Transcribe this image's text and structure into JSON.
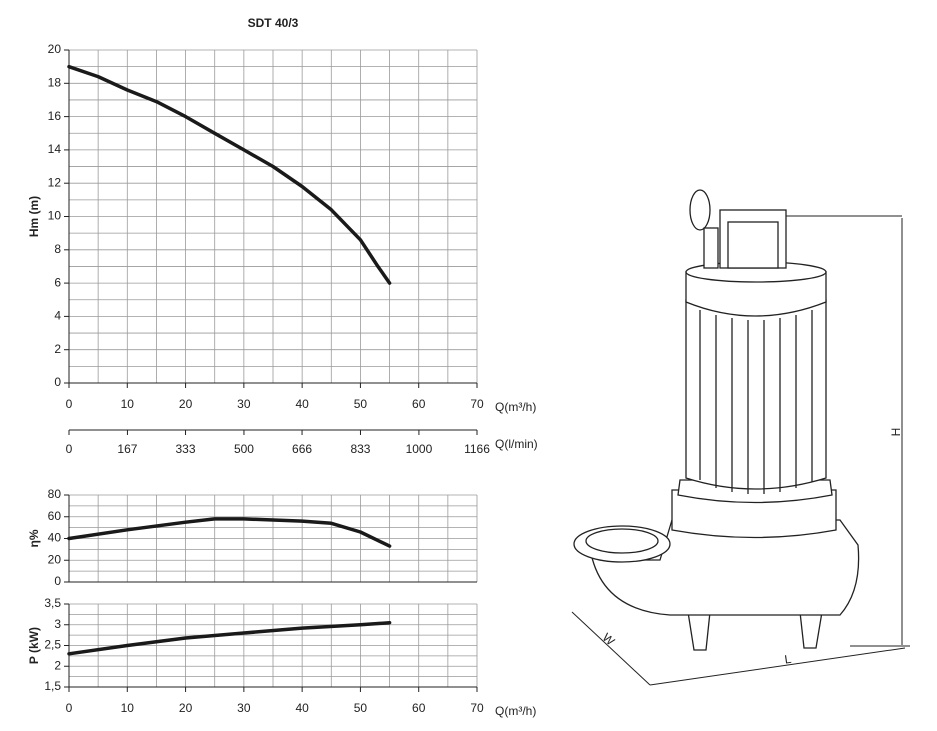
{
  "chart_data": [
    {
      "type": "line",
      "title": "SDT 40/3",
      "ylabel": "Hm   (m)",
      "xlabel": "Q(m³/h)",
      "xlim": [
        0,
        70
      ],
      "xticks": [
        0,
        10,
        20,
        30,
        40,
        50,
        60,
        70
      ],
      "xgrid": [
        5,
        15,
        25,
        35,
        45,
        55,
        65
      ],
      "ylim": [
        0,
        20
      ],
      "yticks": [
        0,
        2,
        4,
        6,
        8,
        10,
        12,
        14,
        16,
        18,
        20
      ],
      "ygrid": [
        1,
        3,
        5,
        7,
        9,
        11,
        13,
        15,
        17,
        19
      ],
      "x2lim": [
        0,
        1166
      ],
      "x2ticks": [
        0,
        167,
        333,
        500,
        666,
        833,
        1000,
        1166
      ],
      "x2label": "Q(l/min)",
      "x": [
        0,
        5,
        10,
        15,
        20,
        25,
        30,
        35,
        40,
        45,
        50,
        53,
        55
      ],
      "values": [
        19,
        18.4,
        17.6,
        16.9,
        16,
        15,
        14,
        13,
        11.8,
        10.4,
        8.6,
        7,
        6
      ],
      "color": "#1a1a1a",
      "grid": true
    },
    {
      "type": "line",
      "ylabel": "η%",
      "xlim": [
        0,
        70
      ],
      "xgrid": [
        0,
        5,
        10,
        15,
        20,
        25,
        30,
        35,
        40,
        45,
        50,
        55,
        60,
        65,
        70
      ],
      "ylim": [
        0,
        80
      ],
      "yticks": [
        0,
        20,
        40,
        60,
        80
      ],
      "ygrid": [
        10,
        30,
        50,
        70
      ],
      "x": [
        0,
        10,
        20,
        25,
        30,
        40,
        45,
        50,
        55
      ],
      "values": [
        40,
        48,
        55,
        58,
        58,
        56,
        54,
        46,
        33
      ],
      "color": "#1a1a1a",
      "grid": true
    },
    {
      "type": "line",
      "ylabel": "P   (kW)",
      "xlabel": "Q(m³/h)",
      "xlim": [
        0,
        70
      ],
      "xticks": [
        0,
        10,
        20,
        30,
        40,
        50,
        60,
        70
      ],
      "xgrid": [
        5,
        15,
        25,
        35,
        45,
        55,
        65
      ],
      "ylim": [
        1.5,
        3.5
      ],
      "yticks": [
        {
          "value": 1.5,
          "label": "1,5"
        },
        2,
        {
          "value": 2.5,
          "label": "2,5"
        },
        3,
        {
          "value": 3.5,
          "label": "3,5"
        }
      ],
      "ygrid": [
        1.75,
        2.25,
        2.75,
        3.25
      ],
      "x": [
        0,
        10,
        20,
        30,
        40,
        50,
        55
      ],
      "values": [
        2.3,
        2.5,
        2.68,
        2.8,
        2.92,
        3.0,
        3.05
      ],
      "color": "#1a1a1a",
      "grid": true
    }
  ],
  "drawing": {
    "height_label": "H",
    "width_label": "W",
    "length_label": "L"
  }
}
